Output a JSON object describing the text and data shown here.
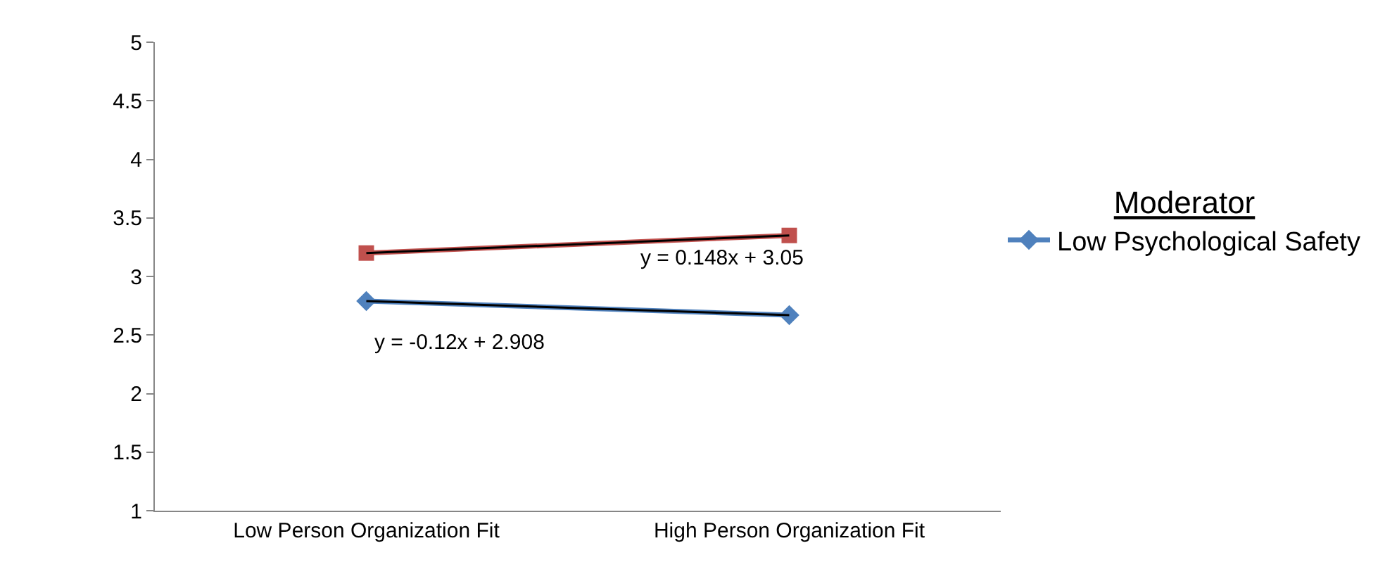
{
  "chart_data": {
    "type": "line",
    "categories": [
      "Low Person Organization Fit",
      "High Person Organization Fit"
    ],
    "series": [
      {
        "name": "Low Psychological Safety",
        "color": "#4f81bd",
        "values": [
          2.79,
          2.67
        ],
        "marker": "diamond"
      },
      {
        "color": "#c0504d",
        "values": [
          3.2,
          3.35
        ],
        "marker": "square"
      },
      {
        "type": "line",
        "color": "#000000",
        "values": [
          2.79,
          2.67
        ],
        "marker": "none"
      },
      {
        "type": "line",
        "color": "#000000",
        "values": [
          3.2,
          3.35
        ],
        "marker": "none"
      }
    ],
    "ylim": [
      1,
      5
    ],
    "yticks": [
      1,
      1.5,
      2,
      2.5,
      3,
      3.5,
      4,
      4.5,
      5
    ],
    "legend": "right",
    "legend_title": "Moderator",
    "annotations": [
      "y = -0.12x + 2.908",
      "y = 0.148x + 3.05"
    ]
  }
}
